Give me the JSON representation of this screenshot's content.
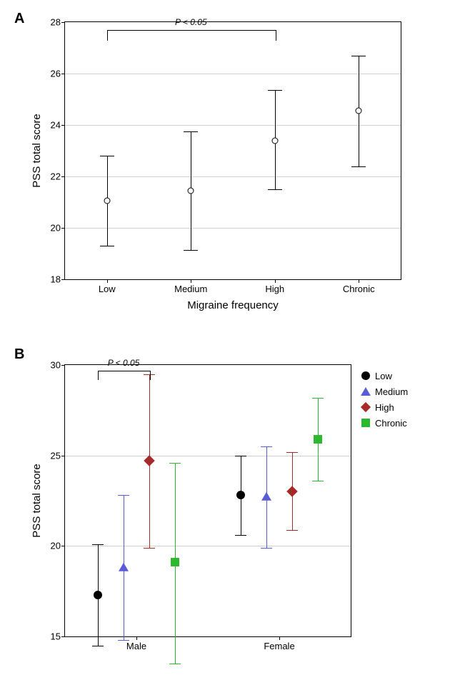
{
  "panelA": {
    "label": "A",
    "type": "errorbar",
    "ylabel": "PSS total score",
    "xlabel": "Migraine frequency",
    "ylim": [
      18,
      28
    ],
    "ytick_step": 2,
    "categories": [
      "Low",
      "Medium",
      "High",
      "Chronic"
    ],
    "data": [
      {
        "mean": 21.05,
        "low": 19.3,
        "high": 22.8
      },
      {
        "mean": 21.45,
        "low": 19.15,
        "high": 23.75
      },
      {
        "mean": 23.4,
        "low": 21.5,
        "high": 25.35
      },
      {
        "mean": 24.55,
        "low": 22.4,
        "high": 26.7
      }
    ],
    "marker_color": "#000000",
    "error_color": "#000000",
    "grid_color": "#d0d0d0",
    "background_color": "#ffffff",
    "significance": {
      "from": 0,
      "to": 2,
      "label": "P < 0.05",
      "y": 27.7
    },
    "label_fontsize": 15,
    "tick_fontsize": 13
  },
  "panelB": {
    "label": "B",
    "type": "grouped-errorbar",
    "ylabel": "PSS total score",
    "ylim": [
      15,
      30
    ],
    "ytick_step": 5,
    "minor_grid": true,
    "groups": [
      "Male",
      "Female"
    ],
    "series": [
      {
        "name": "Low",
        "color": "#000000",
        "marker": "circle"
      },
      {
        "name": "Medium",
        "color": "#5b5bd6",
        "marker": "triangle"
      },
      {
        "name": "High",
        "color": "#a52a2a",
        "marker": "diamond"
      },
      {
        "name": "Chronic",
        "color": "#2db82d",
        "marker": "square"
      }
    ],
    "data": {
      "Male": [
        {
          "mean": 17.3,
          "low": 14.5,
          "high": 20.1
        },
        {
          "mean": 18.8,
          "low": 14.8,
          "high": 22.8
        },
        {
          "mean": 24.7,
          "low": 19.9,
          "high": 29.5
        },
        {
          "mean": 19.1,
          "low": 13.5,
          "high": 24.6
        }
      ],
      "Female": [
        {
          "mean": 22.8,
          "low": 20.6,
          "high": 25.0
        },
        {
          "mean": 22.7,
          "low": 19.9,
          "high": 25.5
        },
        {
          "mean": 23.0,
          "low": 20.9,
          "high": 25.2
        },
        {
          "mean": 25.9,
          "low": 23.6,
          "high": 28.2
        }
      ]
    },
    "significance": {
      "group": "Male",
      "from": 0,
      "to": 2,
      "label": "P < 0.05",
      "y": 29.7
    },
    "grid_color": "#d0d0d0",
    "background_color": "#ffffff",
    "label_fontsize": 15,
    "tick_fontsize": 13
  }
}
